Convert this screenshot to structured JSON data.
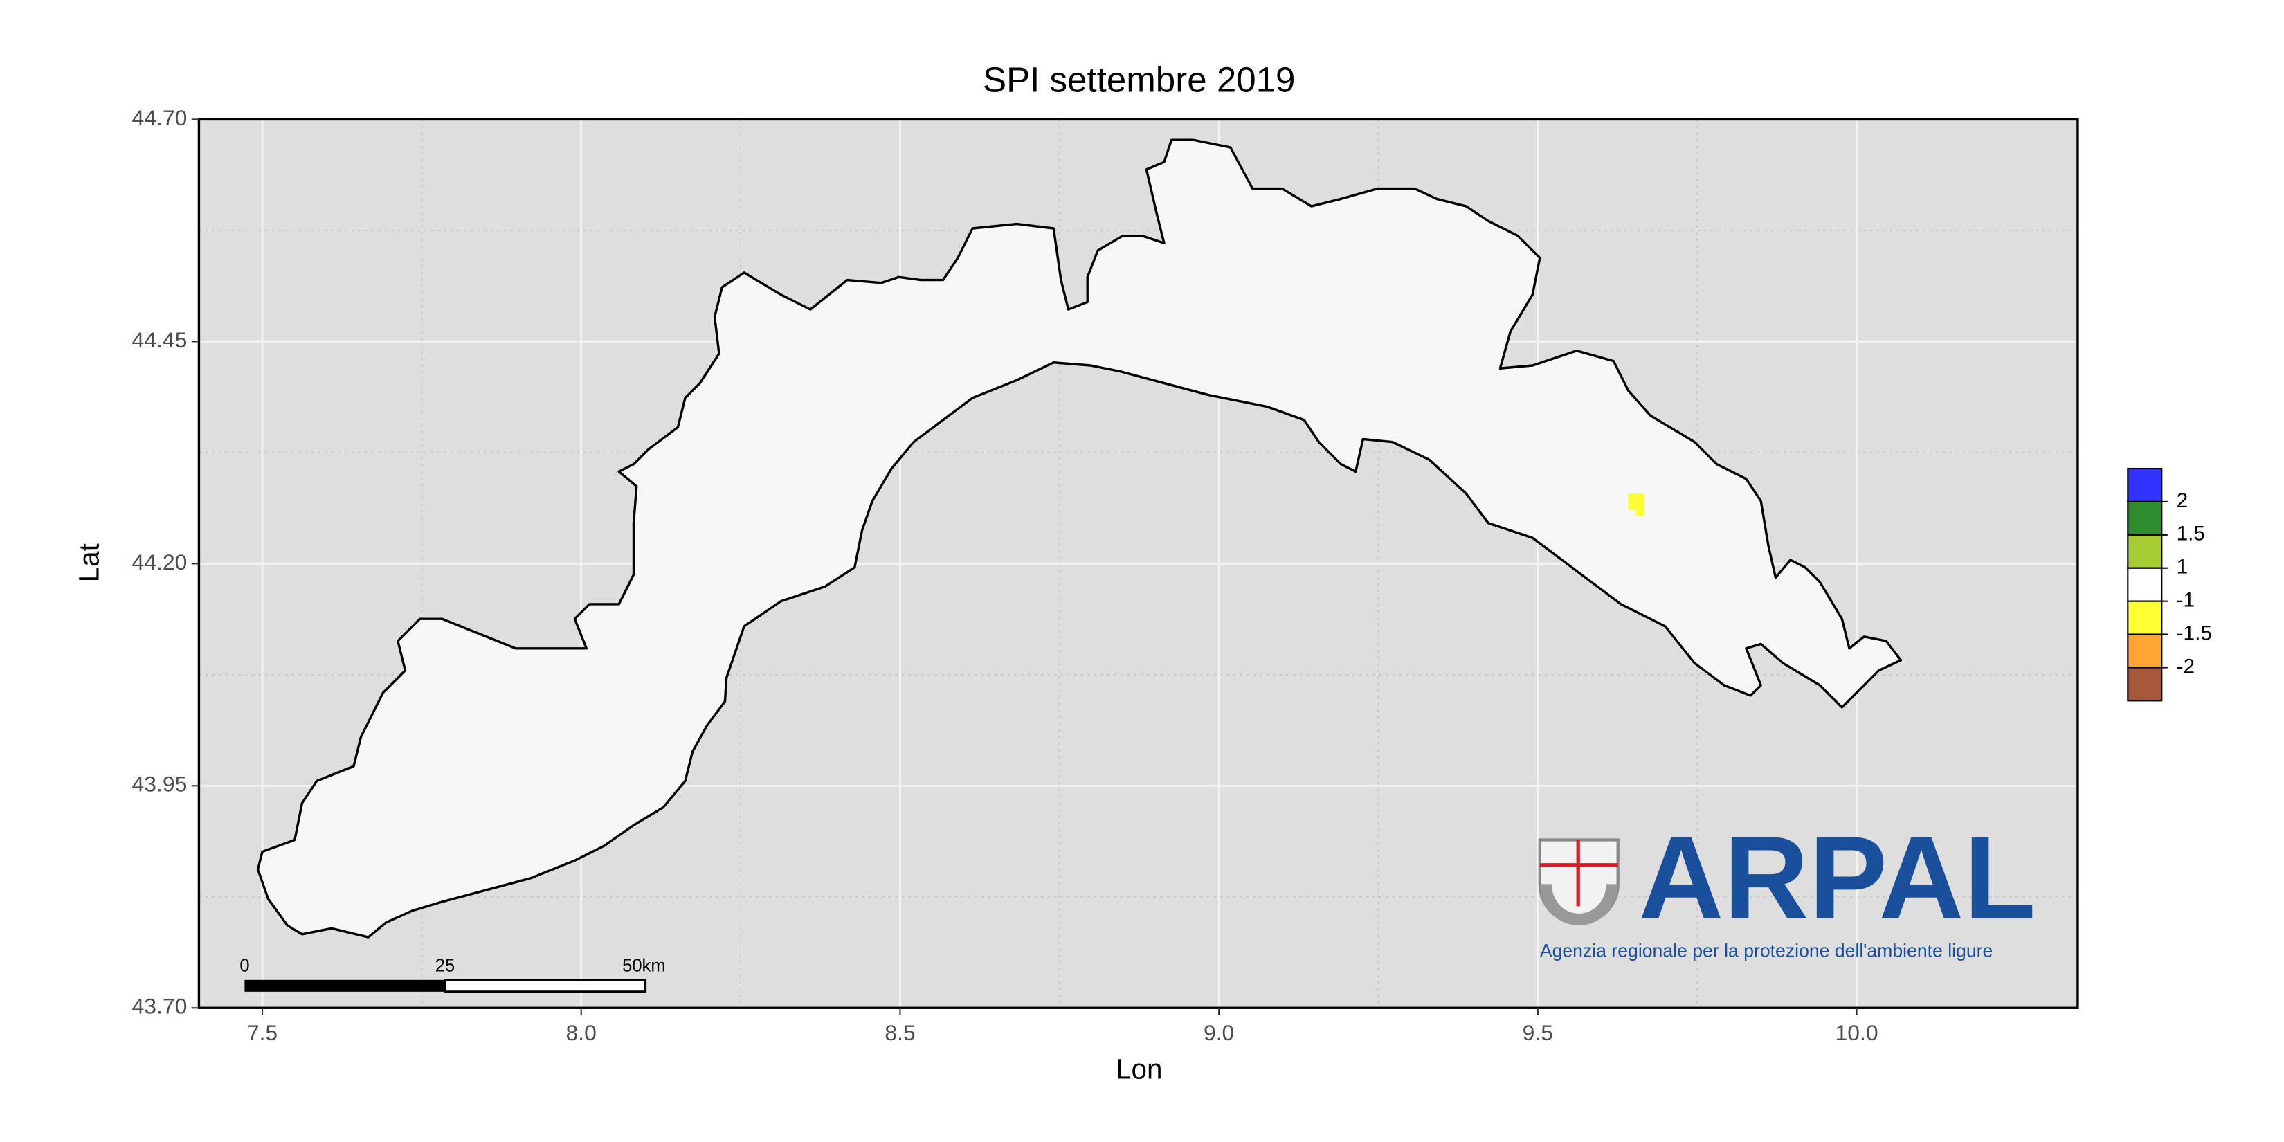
{
  "map": {
    "title": "SPI settembre 2019",
    "x_label": "Lon",
    "y_label": "Lat",
    "xlim": [
      7.4006,
      10.3466
    ],
    "ylim": [
      43.7,
      44.7
    ],
    "xticks": [
      {
        "value": 7.5,
        "label": "7.5"
      },
      {
        "value": 8,
        "label": "8.0"
      },
      {
        "value": 8.5,
        "label": "8.5"
      },
      {
        "value": 9,
        "label": "9.0"
      },
      {
        "value": 9.5,
        "label": "9.5"
      },
      {
        "value": 10,
        "label": "10.0"
      }
    ],
    "yticks": [
      {
        "value": 43.7,
        "label": "43.70"
      },
      {
        "value": 43.95,
        "label": "43.95"
      },
      {
        "value": 44.2,
        "label": "44.20"
      },
      {
        "value": 44.45,
        "label": "44.45"
      },
      {
        "value": 44.7,
        "label": "44.70"
      }
    ],
    "grid": true,
    "legend": {
      "colors": [
        "#3333ff",
        "#2e8b2e",
        "#a6cc33",
        "#ffffff",
        "#ffff33",
        "#ffa533",
        "#a8583a"
      ],
      "breaks": [
        2,
        1.5,
        1,
        -1,
        -1.5,
        -2
      ]
    },
    "scale_bar": {
      "labels": [
        "0",
        "25",
        "50km"
      ]
    }
  },
  "logo": {
    "name": "ARPAL",
    "tagline": "Agenzia regionale per la protezione dell'ambiente ligure"
  }
}
